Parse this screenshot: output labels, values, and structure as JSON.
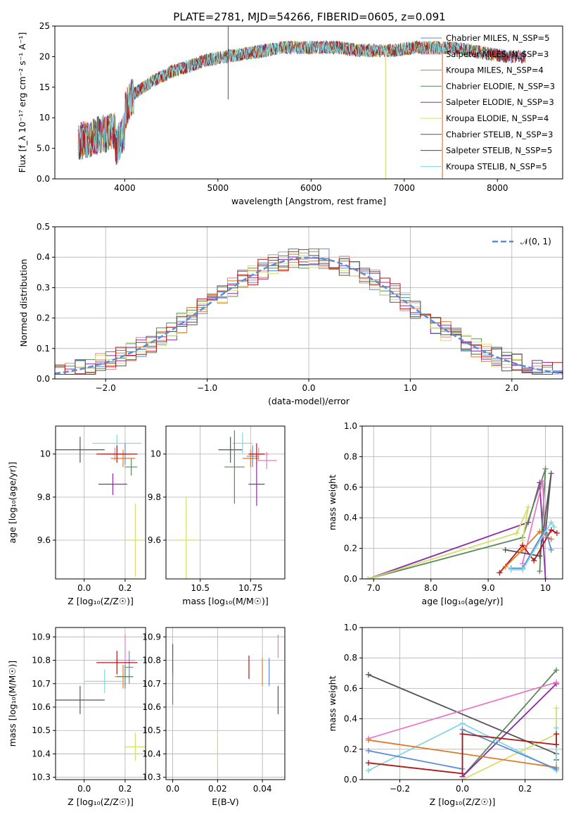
{
  "figure": {
    "title": "PLATE=2781, MJD=54266, FIBERID=0605, z=0.091"
  },
  "colors": {
    "chabrier_miles": "#5b8bd6",
    "salpeter_miles": "#d88c8c",
    "kroupa_miles": "#e0782a",
    "chabrier_elodie": "#5a8a5a",
    "salpeter_elodie": "#8b2aa8",
    "kroupa_elodie": "#d2e06a",
    "chabrier_stelib": "#555555",
    "salpeter_stelib": "#b01818",
    "kroupa_stelib": "#80d8e0",
    "pink": "#e878c8",
    "gauss": "#5b8bd6"
  },
  "chart_data": [
    {
      "type": "line",
      "id": "spectrum",
      "xlabel": "wavelength [Angstrom, rest frame]",
      "ylabel": "Flux [f_λ 10⁻¹⁷ erg cm⁻² s⁻¹ A⁻¹]",
      "xlim": [
        3250,
        8700
      ],
      "ylim": [
        0,
        25
      ],
      "xticks": [
        4000,
        5000,
        6000,
        7000,
        8000
      ],
      "yticks": [
        0,
        5,
        10,
        15,
        20,
        25
      ],
      "legend_position": "top-right",
      "continuum": {
        "x": [
          3500,
          3700,
          3900,
          4000,
          4100,
          4300,
          4500,
          4700,
          4900,
          5100,
          5300,
          5500,
          5700,
          5900,
          6100,
          6300,
          6500,
          6700,
          6900,
          7100,
          7300,
          7500,
          7700,
          7900,
          8100,
          8300
        ],
        "y": [
          6,
          7,
          8,
          11,
          14,
          16,
          17.5,
          18.5,
          19.5,
          20,
          20.5,
          21,
          21.5,
          21.5,
          21.5,
          21.5,
          21,
          21,
          21,
          21.5,
          21.5,
          21.5,
          21,
          20.5,
          20,
          20
        ]
      },
      "series": [
        {
          "name": "Chabrier MILES, N_SSP=5",
          "color_key": "chabrier_miles"
        },
        {
          "name": "Salpeter MILES, N_SSP=3",
          "color_key": "salpeter_miles"
        },
        {
          "name": "Kroupa MILES, N_SSP=4",
          "color_key": "kroupa_miles"
        },
        {
          "name": "Chabrier ELODIE, N_SSP=3",
          "color_key": "chabrier_elodie"
        },
        {
          "name": "Salpeter ELODIE, N_SSP=3",
          "color_key": "salpeter_elodie"
        },
        {
          "name": "Kroupa ELODIE, N_SSP=4",
          "color_key": "kroupa_elodie"
        },
        {
          "name": "Chabrier STELIB, N_SSP=3",
          "color_key": "chabrier_stelib"
        },
        {
          "name": "Salpeter STELIB, N_SSP=5",
          "color_key": "salpeter_stelib"
        },
        {
          "name": "Kroupa STELIB, N_SSP=5",
          "color_key": "kroupa_stelib"
        }
      ]
    },
    {
      "type": "histogram",
      "id": "residuals",
      "xlabel": "(data-model)/error",
      "ylabel": "Normed distribution",
      "xlim": [
        -2.5,
        2.5
      ],
      "ylim": [
        0,
        0.5
      ],
      "xticks": [
        -2,
        -1,
        0,
        1,
        2
      ],
      "yticks": [
        0.0,
        0.1,
        0.2,
        0.3,
        0.4,
        0.5
      ],
      "gauss_label": "𝒩(0, 1)",
      "bin_width": 0.1,
      "legend_position": "top-right",
      "grid": true
    },
    {
      "type": "scatter",
      "id": "z_age",
      "xlabel": "Z [log₁₀(Z/Z☉)]",
      "ylabel": "age  [log₁₀(age/yr)]",
      "xlim": [
        -0.14,
        0.3
      ],
      "ylim": [
        9.42,
        10.13
      ],
      "xticks": [
        0.0,
        0.2
      ],
      "yticks": [
        9.6,
        9.8,
        10.0
      ],
      "grid": true,
      "points": [
        {
          "x": -0.02,
          "y": 10.02,
          "xerr": 0.12,
          "yerr": 0.06,
          "color_key": "chabrier_stelib"
        },
        {
          "x": 0.16,
          "y": 10.05,
          "xerr": 0.12,
          "yerr": 0.04,
          "color_key": "kroupa_stelib"
        },
        {
          "x": 0.15,
          "y": 10.0,
          "xerr": 0.06,
          "yerr": 0.03,
          "color_key": "salpeter_miles"
        },
        {
          "x": 0.19,
          "y": 9.98,
          "xerr": 0.06,
          "yerr": 0.04,
          "color_key": "kroupa_miles"
        },
        {
          "x": 0.2,
          "y": 10.0,
          "xerr": 0.03,
          "yerr": 0.05,
          "color_key": "chabrier_miles"
        },
        {
          "x": 0.16,
          "y": 10.0,
          "xerr": 0.1,
          "yerr": 0.04,
          "color_key": "salpeter_stelib"
        },
        {
          "x": 0.23,
          "y": 9.94,
          "xerr": 0.03,
          "yerr": 0.04,
          "color_key": "chabrier_elodie"
        },
        {
          "x": 0.14,
          "y": 9.86,
          "xerr": 0.07,
          "yerr": 0.05,
          "color_key": "salpeter_elodie"
        },
        {
          "x": 0.25,
          "y": 9.6,
          "xerr": 0.05,
          "yerr": 0.17,
          "color_key": "kroupa_elodie"
        }
      ]
    },
    {
      "type": "scatter",
      "id": "mass_age",
      "xlabel": "mass [log₁₀(M/M☉)]",
      "ylabel": "",
      "xlim": [
        10.33,
        10.92
      ],
      "ylim": [
        9.42,
        10.13
      ],
      "xticks": [
        10.5,
        10.75
      ],
      "yticks": [
        9.6,
        9.8,
        10.0
      ],
      "grid": true,
      "points": [
        {
          "x": 10.65,
          "y": 10.02,
          "xerr": 0.06,
          "yerr": 0.06,
          "color_key": "chabrier_stelib"
        },
        {
          "x": 10.71,
          "y": 10.05,
          "xerr": 0.05,
          "yerr": 0.05,
          "color_key": "kroupa_stelib"
        },
        {
          "x": 10.79,
          "y": 10.0,
          "xerr": 0.05,
          "yerr": 0.03,
          "color_key": "salpeter_miles"
        },
        {
          "x": 10.75,
          "y": 9.98,
          "xerr": 0.04,
          "yerr": 0.04,
          "color_key": "kroupa_miles"
        },
        {
          "x": 10.76,
          "y": 9.99,
          "xerr": 0.03,
          "yerr": 0.05,
          "color_key": "chabrier_miles"
        },
        {
          "x": 10.78,
          "y": 10.0,
          "xerr": 0.04,
          "yerr": 0.05,
          "color_key": "salpeter_stelib"
        },
        {
          "x": 10.83,
          "y": 9.97,
          "xerr": 0.05,
          "yerr": 0.04,
          "color_key": "pink"
        },
        {
          "x": 10.67,
          "y": 9.94,
          "xerr": 0.05,
          "yerr": 0.17,
          "color_key": "chabrier_elodie"
        },
        {
          "x": 10.78,
          "y": 9.86,
          "xerr": 0.04,
          "yerr": 0.1,
          "color_key": "salpeter_elodie"
        },
        {
          "x": 10.43,
          "y": 9.6,
          "xerr": 0.06,
          "yerr": 0.2,
          "color_key": "kroupa_elodie"
        }
      ]
    },
    {
      "type": "line",
      "id": "age_weight",
      "xlabel": "age  [log₁₀(age/yr)]",
      "ylabel": "mass weight",
      "xlim": [
        6.8,
        10.3
      ],
      "ylim": [
        0,
        1.0
      ],
      "xticks": [
        7,
        8,
        9,
        10
      ],
      "yticks": [
        0.0,
        0.2,
        0.4,
        0.6,
        0.8,
        1.0
      ],
      "grid": true,
      "series": [
        {
          "color_key": "salpeter_elodie",
          "x": [
            6.9,
            9.7,
            9.9,
            10.0
          ],
          "y": [
            0.0,
            0.37,
            0.63,
            0.0
          ]
        },
        {
          "color_key": "chabrier_elodie",
          "x": [
            6.9,
            9.6,
            10.0,
            9.9
          ],
          "y": [
            0.0,
            0.27,
            0.72,
            0.05
          ]
        },
        {
          "color_key": "kroupa_elodie",
          "x": [
            6.9,
            9.5,
            9.7,
            9.6
          ],
          "y": [
            0.0,
            0.3,
            0.47,
            0.25
          ]
        },
        {
          "color_key": "pink",
          "x": [
            9.6,
            9.95,
            10.0
          ],
          "y": [
            0.1,
            0.64,
            0.27
          ]
        },
        {
          "color_key": "chabrier_stelib",
          "x": [
            9.3,
            9.9,
            10.1,
            10.0
          ],
          "y": [
            0.19,
            0.15,
            0.69,
            0.3
          ]
        },
        {
          "color_key": "salpeter_stelib",
          "x": [
            9.2,
            9.6,
            9.8,
            10.1,
            10.2
          ],
          "y": [
            0.04,
            0.22,
            0.12,
            0.32,
            0.3
          ]
        },
        {
          "color_key": "kroupa_miles",
          "x": [
            9.3,
            9.6,
            9.9,
            10.1
          ],
          "y": [
            0.08,
            0.19,
            0.31,
            0.26
          ]
        },
        {
          "color_key": "chabrier_miles",
          "x": [
            9.4,
            9.6,
            10.0,
            10.1
          ],
          "y": [
            0.07,
            0.07,
            0.33,
            0.19
          ]
        },
        {
          "color_key": "kroupa_stelib",
          "x": [
            9.4,
            9.6,
            10.1,
            10.15
          ],
          "y": [
            0.06,
            0.06,
            0.37,
            0.34
          ]
        }
      ]
    },
    {
      "type": "scatter",
      "id": "z_mass",
      "xlabel": "Z [log₁₀(Z/Z☉)]",
      "ylabel": "mass [log₁₀(M/M☉)]",
      "xlim": [
        -0.14,
        0.3
      ],
      "ylim": [
        10.29,
        10.94
      ],
      "xticks": [
        0.0,
        0.2
      ],
      "yticks": [
        10.3,
        10.4,
        10.5,
        10.6,
        10.7,
        10.8,
        10.9
      ],
      "grid": true,
      "points": [
        {
          "x": 0.2,
          "y": 10.8,
          "xerr": 0.05,
          "yerr": 0.11,
          "color_key": "pink"
        },
        {
          "x": 0.22,
          "y": 10.77,
          "xerr": 0.02,
          "yerr": 0.07,
          "color_key": "chabrier_miles"
        },
        {
          "x": 0.16,
          "y": 10.79,
          "xerr": 0.1,
          "yerr": 0.05,
          "color_key": "salpeter_stelib"
        },
        {
          "x": 0.19,
          "y": 10.73,
          "xerr": 0.04,
          "yerr": 0.05,
          "color_key": "kroupa_miles"
        },
        {
          "x": 0.2,
          "y": 10.73,
          "xerr": 0.04,
          "yerr": 0.05,
          "color_key": "chabrier_elodie"
        },
        {
          "x": 0.1,
          "y": 10.71,
          "xerr": 0.1,
          "yerr": 0.05,
          "color_key": "kroupa_stelib"
        },
        {
          "x": -0.02,
          "y": 10.63,
          "xerr": 0.12,
          "yerr": 0.06,
          "color_key": "chabrier_stelib"
        },
        {
          "x": 0.25,
          "y": 10.43,
          "xerr": 0.05,
          "yerr": 0.06,
          "color_key": "kroupa_elodie"
        }
      ]
    },
    {
      "type": "scatter",
      "id": "ebv_mass",
      "xlabel": "E(B-V)",
      "ylabel": "",
      "xlim": [
        -0.003,
        0.05
      ],
      "ylim": [
        10.29,
        10.94
      ],
      "xticks": [
        0.0,
        0.02,
        0.04
      ],
      "yticks": [
        10.3,
        10.4,
        10.5,
        10.6,
        10.7,
        10.8,
        10.9
      ],
      "grid": true,
      "points": [
        {
          "x": 0.0,
          "y": 10.8,
          "xerr": 0,
          "yerr": 0.07,
          "color_key": "salpeter_elodie"
        },
        {
          "x": 0.0,
          "y": 10.68,
          "xerr": 0,
          "yerr": 0.07,
          "color_key": "chabrier_elodie"
        },
        {
          "x": 0.02,
          "y": 10.43,
          "xerr": 0,
          "yerr": 0.07,
          "color_key": "kroupa_elodie"
        },
        {
          "x": 0.034,
          "y": 10.77,
          "xerr": 0,
          "yerr": 0.05,
          "color_key": "salpeter_stelib"
        },
        {
          "x": 0.04,
          "y": 10.75,
          "xerr": 0,
          "yerr": 0.06,
          "color_key": "kroupa_miles"
        },
        {
          "x": 0.043,
          "y": 10.75,
          "xerr": 0,
          "yerr": 0.06,
          "color_key": "chabrier_miles"
        },
        {
          "x": 0.047,
          "y": 10.63,
          "xerr": 0,
          "yerr": 0.06,
          "color_key": "chabrier_stelib"
        },
        {
          "x": 0.047,
          "y": 10.86,
          "xerr": 0,
          "yerr": 0.05,
          "color_key": "pink"
        },
        {
          "x": 0.05,
          "y": 10.7,
          "xerr": 0,
          "yerr": 0.05,
          "color_key": "kroupa_stelib"
        }
      ]
    },
    {
      "type": "line",
      "id": "z_weight",
      "xlabel": "Z [log₁₀(Z/Z☉)]",
      "ylabel": "mass weight",
      "xlim": [
        -0.32,
        0.32
      ],
      "ylim": [
        0,
        1.0
      ],
      "xticks": [
        -0.2,
        0.0,
        0.2
      ],
      "yticks": [
        0.0,
        0.2,
        0.4,
        0.6,
        0.8,
        1.0
      ],
      "grid": true,
      "series": [
        {
          "color_key": "chabrier_stelib",
          "x": [
            -0.3,
            0.3,
            0.3
          ],
          "y": [
            0.69,
            0.17,
            0.13
          ]
        },
        {
          "color_key": "chabrier_elodie",
          "x": [
            0.0,
            0.3
          ],
          "y": [
            0.02,
            0.72
          ]
        },
        {
          "color_key": "salpeter_elodie",
          "x": [
            0.0,
            0.3
          ],
          "y": [
            0.02,
            0.63
          ]
        },
        {
          "color_key": "pink",
          "x": [
            -0.3,
            0.3
          ],
          "y": [
            0.27,
            0.64
          ]
        },
        {
          "color_key": "kroupa_elodie",
          "x": [
            0.0,
            0.3,
            0.3
          ],
          "y": [
            0.0,
            0.3,
            0.47
          ]
        },
        {
          "color_key": "kroupa_stelib",
          "x": [
            -0.3,
            0.0,
            0.3,
            0.3
          ],
          "y": [
            0.06,
            0.37,
            0.06,
            0.34
          ]
        },
        {
          "color_key": "kroupa_miles",
          "x": [
            -0.3,
            0.3
          ],
          "y": [
            0.26,
            0.08
          ]
        },
        {
          "color_key": "chabrier_miles",
          "x": [
            -0.3,
            0.0,
            0.0,
            0.3
          ],
          "y": [
            0.19,
            0.07,
            0.33,
            0.07
          ]
        },
        {
          "color_key": "salpeter_stelib",
          "x": [
            -0.3,
            0.0,
            0.0,
            0.3,
            0.3
          ],
          "y": [
            0.11,
            0.04,
            0.3,
            0.23,
            0.3
          ]
        }
      ]
    }
  ]
}
